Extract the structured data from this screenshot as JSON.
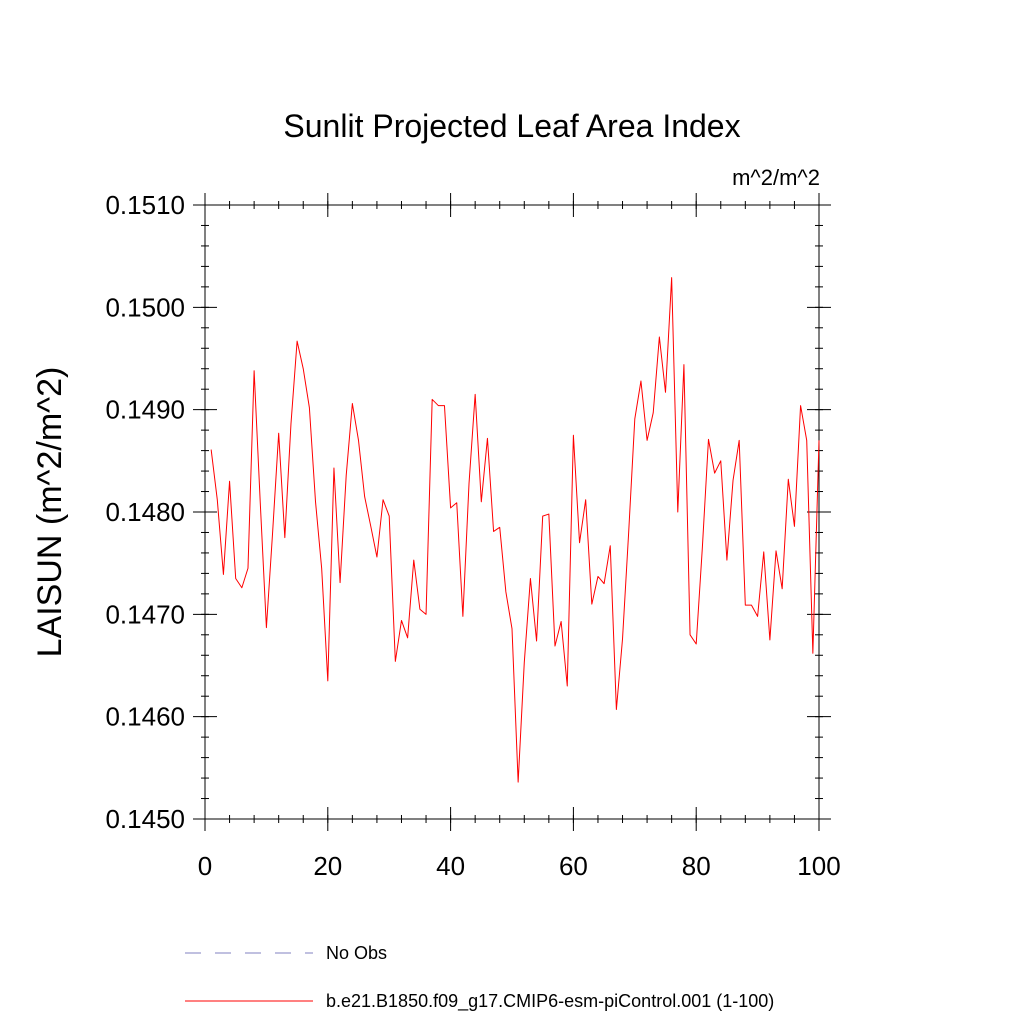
{
  "chart_data": {
    "type": "line",
    "title": "Sunlit Projected Leaf Area Index",
    "units": "m^2/m^2",
    "ylabel": "LAISUN  (m^2/m^2)",
    "xlabel": "",
    "xlim": [
      0,
      100
    ],
    "ylim": [
      0.145,
      0.151
    ],
    "xticks": [
      0,
      20,
      40,
      60,
      80,
      100
    ],
    "xtick_labels": [
      "0",
      "20",
      "40",
      "60",
      "80",
      "100"
    ],
    "yticks": [
      0.145,
      0.146,
      0.147,
      0.148,
      0.149,
      0.15,
      0.151
    ],
    "ytick_labels": [
      "0.1450",
      "0.1460",
      "0.1470",
      "0.1480",
      "0.1490",
      "0.1500",
      "0.1510"
    ],
    "grid": false,
    "legend_position": "bottom",
    "series": [
      {
        "name": "No Obs",
        "color": "#8080c0",
        "dashed": true,
        "values": []
      },
      {
        "name": "b.e21.B1850.f09_g17.CMIP6-esm-piControl.001 (1-100)",
        "color": "#ff0000",
        "dashed": false,
        "x": [
          1,
          2,
          3,
          4,
          5,
          6,
          7,
          8,
          9,
          10,
          11,
          12,
          13,
          14,
          15,
          16,
          17,
          18,
          19,
          20,
          21,
          22,
          23,
          24,
          25,
          26,
          27,
          28,
          29,
          30,
          31,
          32,
          33,
          34,
          35,
          36,
          37,
          38,
          39,
          40,
          41,
          42,
          43,
          44,
          45,
          46,
          47,
          48,
          49,
          50,
          51,
          52,
          53,
          54,
          55,
          56,
          57,
          58,
          59,
          60,
          61,
          62,
          63,
          64,
          65,
          66,
          67,
          68,
          69,
          70,
          71,
          72,
          73,
          74,
          75,
          76,
          77,
          78,
          79,
          80,
          81,
          82,
          83,
          84,
          85,
          86,
          87,
          88,
          89,
          90,
          91,
          92,
          93,
          94,
          95,
          96,
          97,
          98,
          99,
          100
        ],
        "values": [
          0.14861,
          0.14812,
          0.14739,
          0.1483,
          0.14735,
          0.14726,
          0.14745,
          0.14938,
          0.14809,
          0.14687,
          0.14779,
          0.14877,
          0.14775,
          0.14886,
          0.14967,
          0.1494,
          0.14902,
          0.1481,
          0.14745,
          0.14635,
          0.14843,
          0.14731,
          0.14836,
          0.14906,
          0.1487,
          0.14815,
          0.14786,
          0.14756,
          0.14812,
          0.14796,
          0.14654,
          0.14694,
          0.14677,
          0.14753,
          0.14705,
          0.147,
          0.1491,
          0.14904,
          0.14904,
          0.14804,
          0.14809,
          0.14698,
          0.14828,
          0.14915,
          0.1481,
          0.14872,
          0.14781,
          0.14785,
          0.14722,
          0.14686,
          0.14536,
          0.14653,
          0.14735,
          0.14674,
          0.14796,
          0.14798,
          0.14669,
          0.14693,
          0.1463,
          0.14875,
          0.1477,
          0.14812,
          0.1471,
          0.14737,
          0.1473,
          0.14767,
          0.14607,
          0.14676,
          0.1478,
          0.14891,
          0.14928,
          0.1487,
          0.14897,
          0.14971,
          0.14917,
          0.15029,
          0.148,
          0.14944,
          0.1468,
          0.14671,
          0.14765,
          0.14871,
          0.14838,
          0.1485,
          0.14753,
          0.14831,
          0.1487,
          0.14709,
          0.14709,
          0.14698,
          0.14761,
          0.14675,
          0.14762,
          0.14725,
          0.14832,
          0.14786,
          0.14904,
          0.1487,
          0.14662,
          0.1487
        ]
      }
    ]
  }
}
